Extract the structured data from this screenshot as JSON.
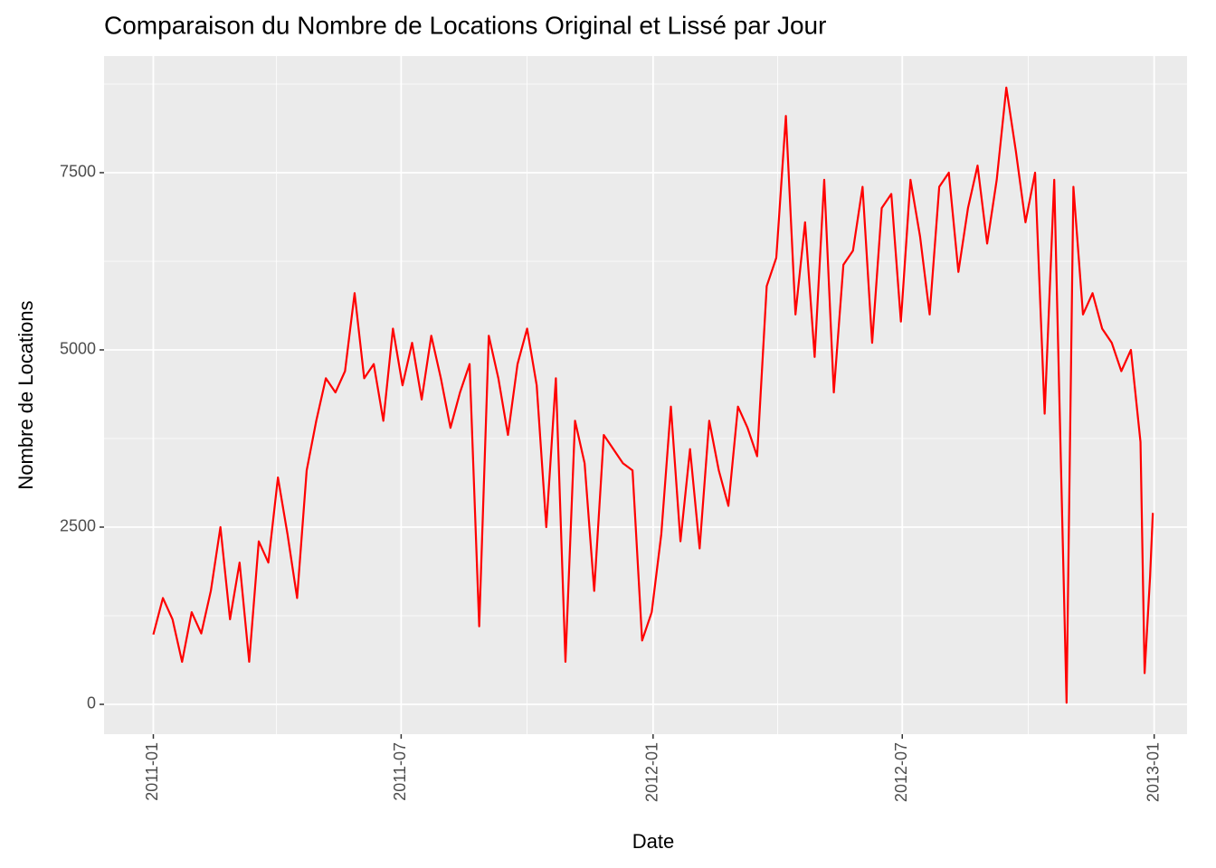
{
  "chart_data": {
    "type": "line",
    "title": "Comparaison du Nombre de Locations Original et Lissé par Jour",
    "xlabel": "Date",
    "ylabel": "Nombre de Locations",
    "x": [
      "2011-01-01",
      "2011-01-08",
      "2011-01-15",
      "2011-01-22",
      "2011-01-29",
      "2011-02-05",
      "2011-02-12",
      "2011-02-19",
      "2011-02-26",
      "2011-03-05",
      "2011-03-12",
      "2011-03-19",
      "2011-03-26",
      "2011-04-02",
      "2011-04-09",
      "2011-04-16",
      "2011-04-23",
      "2011-04-30",
      "2011-05-07",
      "2011-05-14",
      "2011-05-21",
      "2011-05-28",
      "2011-06-04",
      "2011-06-11",
      "2011-06-18",
      "2011-06-25",
      "2011-07-02",
      "2011-07-09",
      "2011-07-16",
      "2011-07-23",
      "2011-07-30",
      "2011-08-06",
      "2011-08-13",
      "2011-08-20",
      "2011-08-27",
      "2011-09-03",
      "2011-09-10",
      "2011-09-17",
      "2011-09-24",
      "2011-10-01",
      "2011-10-08",
      "2011-10-15",
      "2011-10-22",
      "2011-10-29",
      "2011-11-05",
      "2011-11-12",
      "2011-11-19",
      "2011-11-26",
      "2011-12-03",
      "2011-12-10",
      "2011-12-17",
      "2011-12-24",
      "2011-12-31",
      "2012-01-07",
      "2012-01-14",
      "2012-01-21",
      "2012-01-28",
      "2012-02-04",
      "2012-02-11",
      "2012-02-18",
      "2012-02-25",
      "2012-03-03",
      "2012-03-10",
      "2012-03-17",
      "2012-03-24",
      "2012-03-31",
      "2012-04-07",
      "2012-04-14",
      "2012-04-21",
      "2012-04-28",
      "2012-05-05",
      "2012-05-12",
      "2012-05-19",
      "2012-05-26",
      "2012-06-02",
      "2012-06-09",
      "2012-06-16",
      "2012-06-23",
      "2012-06-30",
      "2012-07-07",
      "2012-07-14",
      "2012-07-21",
      "2012-07-28",
      "2012-08-04",
      "2012-08-11",
      "2012-08-18",
      "2012-08-25",
      "2012-09-01",
      "2012-09-08",
      "2012-09-15",
      "2012-09-22",
      "2012-09-29",
      "2012-10-06",
      "2012-10-13",
      "2012-10-20",
      "2012-10-29",
      "2012-11-03",
      "2012-11-10",
      "2012-11-17",
      "2012-11-24",
      "2012-12-01",
      "2012-12-08",
      "2012-12-15",
      "2012-12-22",
      "2012-12-25",
      "2012-12-29",
      "2012-12-31"
    ],
    "values": [
      985,
      1500,
      1200,
      600,
      1300,
      1000,
      1600,
      2500,
      1200,
      2000,
      600,
      2300,
      2000,
      3200,
      2400,
      1500,
      3300,
      4000,
      4600,
      4400,
      4700,
      5800,
      4600,
      4800,
      4000,
      5300,
      4500,
      5100,
      4300,
      5200,
      4600,
      3900,
      4400,
      4800,
      1100,
      5200,
      4600,
      3800,
      4800,
      5300,
      4500,
      2500,
      4600,
      600,
      4000,
      3400,
      1600,
      3800,
      3600,
      3400,
      3300,
      900,
      1300,
      2400,
      4200,
      2300,
      3600,
      2200,
      4000,
      3300,
      2800,
      4200,
      3900,
      3500,
      5900,
      6300,
      8300,
      5500,
      6800,
      4900,
      7400,
      4400,
      6200,
      6400,
      7300,
      5100,
      7000,
      7200,
      5400,
      7400,
      6600,
      5500,
      7300,
      7500,
      6100,
      7000,
      7600,
      6500,
      7400,
      8700,
      7800,
      6800,
      7500,
      4100,
      7400,
      22,
      7300,
      5500,
      5800,
      5300,
      5100,
      4700,
      5000,
      3700,
      440,
      1800,
      2700
    ],
    "color": "#ff0000",
    "xlim": [
      "2010-11-26",
      "2013-01-25"
    ],
    "xticks": [
      "2011-01",
      "2011-07",
      "2012-01",
      "2012-07",
      "2013-01"
    ],
    "xticks_minor": [
      "2011-04",
      "2011-10",
      "2012-04",
      "2012-10"
    ],
    "ylim": [
      -421,
      9145
    ],
    "yticks": [
      0,
      2500,
      5000,
      7500
    ],
    "yticks_minor": [
      1250,
      3750,
      6250,
      8750
    ],
    "grid": true
  }
}
